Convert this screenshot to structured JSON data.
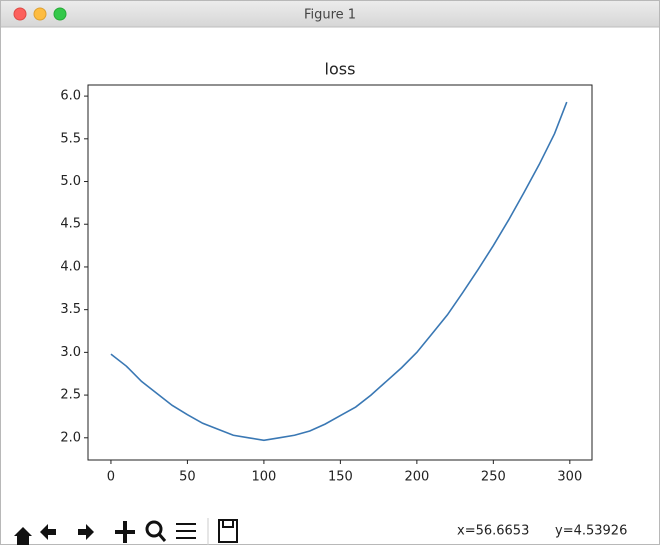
{
  "window": {
    "title": "Figure 1"
  },
  "chart_data": {
    "type": "line",
    "title": "loss",
    "x": [
      0,
      10,
      20,
      30,
      40,
      50,
      60,
      70,
      80,
      90,
      100,
      110,
      120,
      130,
      140,
      150,
      160,
      170,
      180,
      190,
      200,
      210,
      220,
      230,
      240,
      250,
      260,
      270,
      280,
      290,
      298
    ],
    "values": [
      2.98,
      2.84,
      2.66,
      2.52,
      2.38,
      2.27,
      2.17,
      2.1,
      2.03,
      2.0,
      1.97,
      2.0,
      2.03,
      2.08,
      2.16,
      2.26,
      2.36,
      2.5,
      2.66,
      2.82,
      3.0,
      3.22,
      3.44,
      3.7,
      3.97,
      4.25,
      4.55,
      4.87,
      5.2,
      5.56,
      5.93
    ],
    "color": "#3a78b4",
    "xlim": [
      -15,
      314.5
    ],
    "xticks": [
      0,
      50,
      100,
      150,
      200,
      250,
      300
    ],
    "ylim": [
      1.74,
      6.13
    ],
    "yticks": [
      {
        "value": 2,
        "label": "2.0"
      },
      2.5,
      {
        "value": 3,
        "label": "3.0"
      },
      3.5,
      {
        "value": 4,
        "label": "4.0"
      },
      4.5,
      {
        "value": 5,
        "label": "5.0"
      },
      5.5,
      {
        "value": 6,
        "label": "6.0"
      }
    ]
  },
  "status_bar": {
    "x": "x=56.6653",
    "y": "y=4.53926"
  }
}
